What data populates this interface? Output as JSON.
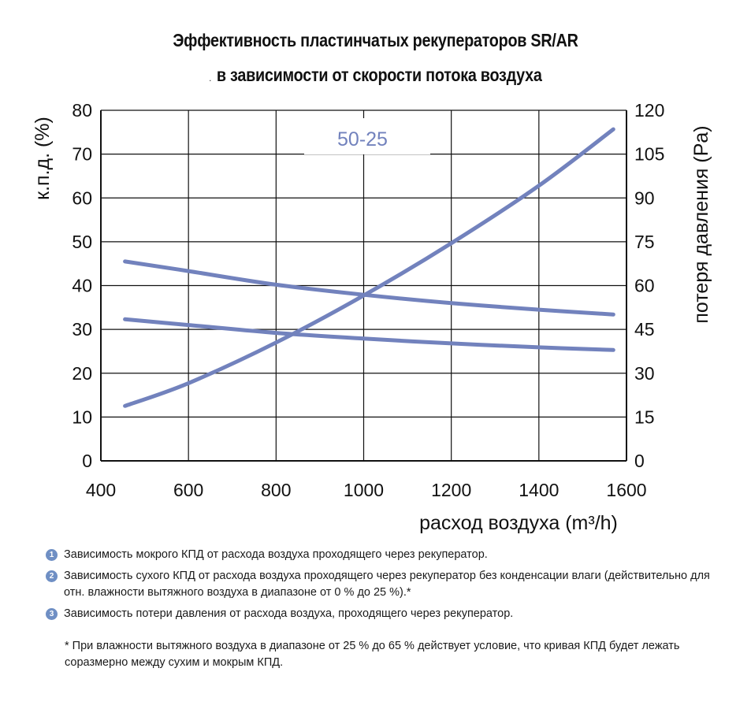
{
  "title_line1": "Эффективность пластинчатых рекуператоров SR/AR",
  "title_line2": "в зависимости от скорости потока воздуха",
  "title_prefix_mark": ".",
  "series_tag": "50-25",
  "colors": {
    "curve": "#7282bd",
    "grid": "#111111",
    "badge": "#6f8fc4"
  },
  "chart_data": {
    "type": "line",
    "xlabel": "расход воздуха (m³/h)",
    "ylabel_left": "к.п.д. (%)",
    "ylabel_right": "потеря давления (Pa)",
    "xlim": [
      400,
      1600
    ],
    "ylim_left": [
      0,
      80
    ],
    "ylim_right": [
      0,
      120
    ],
    "x_ticks": [
      "400",
      "600",
      "800",
      "1000",
      "1200",
      "1400",
      "1600"
    ],
    "y_ticks_left": [
      "0",
      "10",
      "20",
      "30",
      "40",
      "50",
      "60",
      "70",
      "80"
    ],
    "y_ticks_right": [
      "0",
      "15",
      "30",
      "45",
      "60",
      "75",
      "90",
      "105",
      "120"
    ],
    "grid": true,
    "series": [
      {
        "marker": "1",
        "axis": "left",
        "x": [
          455,
          600,
          800,
          1000,
          1200,
          1400,
          1570
        ],
        "y": [
          45.5,
          43.3,
          40.2,
          37.9,
          36.0,
          34.5,
          33.4
        ]
      },
      {
        "marker": "2",
        "axis": "left",
        "x": [
          455,
          600,
          800,
          1000,
          1200,
          1400,
          1570
        ],
        "y": [
          32.3,
          31.0,
          29.2,
          27.9,
          26.8,
          25.9,
          25.3
        ]
      },
      {
        "marker": "3",
        "axis": "right",
        "x": [
          455,
          600,
          800,
          1000,
          1200,
          1400,
          1570
        ],
        "y": [
          18.8,
          26.6,
          40.5,
          56.6,
          74.5,
          94.2,
          113.5
        ]
      }
    ]
  },
  "notes": [
    {
      "num": "1",
      "text": "Зависимость мокрого КПД от расхода воздуха проходящего через рекуператор."
    },
    {
      "num": "2",
      "text": "Зависимость сухого КПД от расхода воздуха проходящего через рекуператор без конденсации влаги (действительно для отн. влажности вытяжного воздуха в диапазоне от 0 % до 25 %).*"
    },
    {
      "num": "3",
      "text": "Зависимость потери давления от расхода воздуха, проходящего через рекуператор."
    }
  ],
  "footnote": "* При влажности вытяжного воздуха в диапазоне от 25 % до 65 % действует условие, что кривая КПД будет лежать соразмерно между сухим и мокрым КПД."
}
